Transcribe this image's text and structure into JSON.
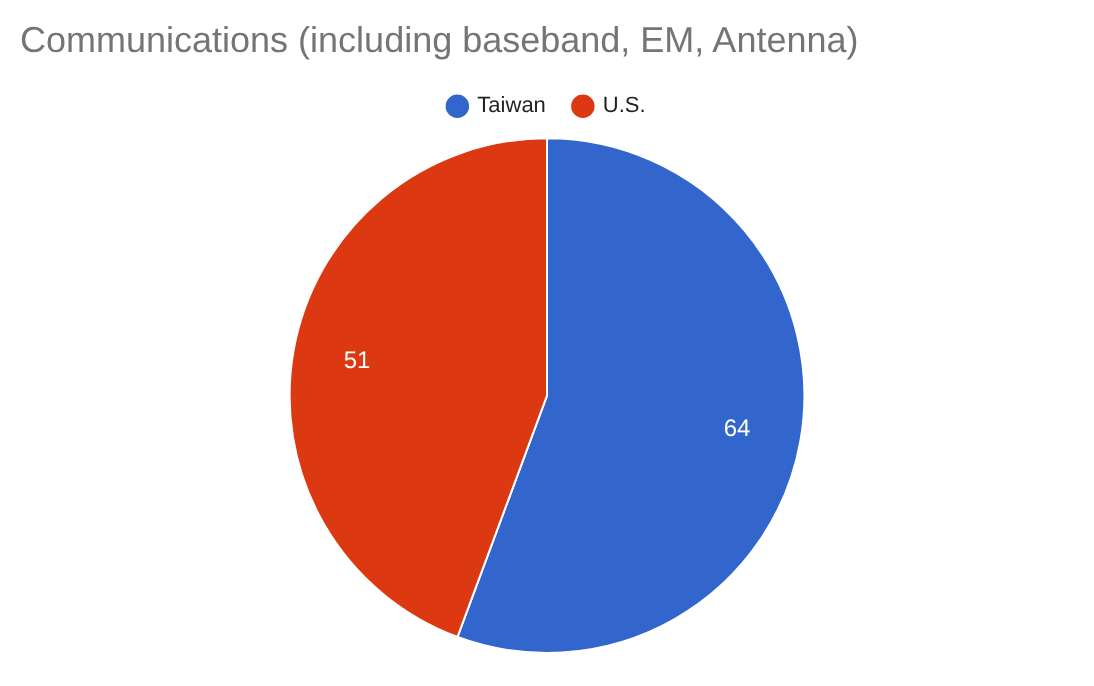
{
  "chart_data": {
    "type": "pie",
    "title": "Communications (including baseband, EM, Antenna)",
    "categories": [
      "Taiwan",
      "U.S."
    ],
    "values": [
      64,
      51
    ],
    "colors": [
      "#3366cc",
      "#dc3912"
    ],
    "legend": "top",
    "data_labels": true
  }
}
